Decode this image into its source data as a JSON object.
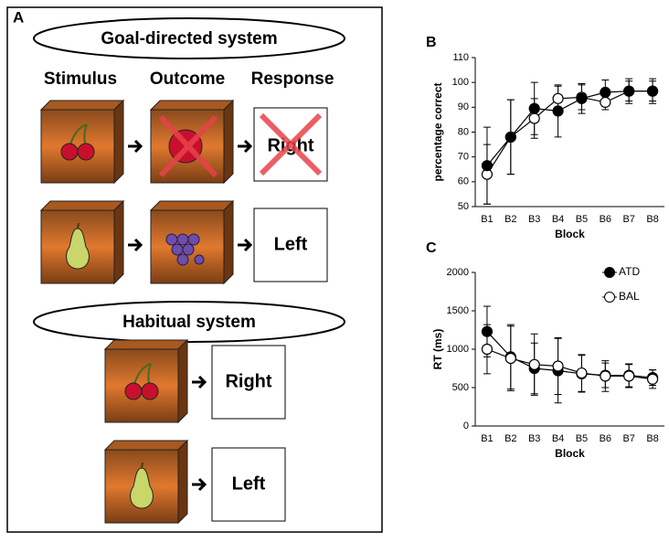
{
  "panel_a": {
    "label": "A",
    "goal_title": "Goal-directed system",
    "headers": [
      "Stimulus",
      "Outcome",
      "Response"
    ],
    "rows": [
      {
        "response": "Right"
      },
      {
        "response": "Left"
      }
    ],
    "habit_title": "Habitual system",
    "habit_rows": [
      {
        "response": "Right"
      },
      {
        "response": "Left"
      }
    ]
  },
  "chart_data": [
    {
      "type": "line",
      "panel_label": "B",
      "ylabel": "percentage correct",
      "xlabel": "Block",
      "categories": [
        "B1",
        "B2",
        "B3",
        "B4",
        "B5",
        "B6",
        "B7",
        "B8"
      ],
      "ylim": [
        50,
        110
      ],
      "yticks": [
        50,
        60,
        70,
        80,
        90,
        100,
        110
      ],
      "series": [
        {
          "color": "#ffffff",
          "values": [
            63,
            78,
            85.5,
            93.5,
            94,
            92,
            96.5,
            96.5
          ],
          "errors": [
            12,
            15,
            8,
            5,
            5,
            3,
            4,
            4
          ]
        },
        {
          "color": "#000000",
          "values": [
            66.5,
            78,
            89.5,
            88.5,
            93.5,
            96,
            96.5,
            96.5
          ],
          "errors": [
            15.5,
            15,
            10.5,
            10.5,
            6,
            5,
            5,
            5
          ]
        }
      ]
    },
    {
      "type": "line",
      "panel_label": "C",
      "ylabel": "RT (ms)",
      "xlabel": "Block",
      "categories": [
        "B1",
        "B2",
        "B3",
        "B4",
        "B5",
        "B6",
        "B7",
        "B8"
      ],
      "ylim": [
        0,
        2000
      ],
      "yticks": [
        0,
        500,
        1000,
        1500,
        2000
      ],
      "legend": "upper right",
      "series": [
        {
          "name": "ATD",
          "color": "#000000",
          "values": [
            1230,
            900,
            750,
            720,
            680,
            660,
            660,
            630
          ],
          "errors": [
            330,
            420,
            330,
            420,
            240,
            160,
            150,
            100
          ]
        },
        {
          "name": "BAL",
          "color": "#ffffff",
          "values": [
            1000,
            880,
            800,
            780,
            690,
            650,
            650,
            610
          ],
          "errors": [
            320,
            420,
            400,
            370,
            240,
            200,
            150,
            120
          ]
        }
      ]
    }
  ]
}
